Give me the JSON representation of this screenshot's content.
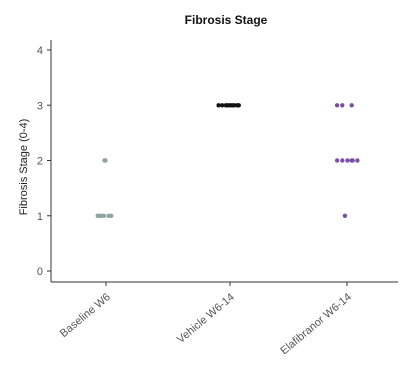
{
  "chart_data": {
    "type": "scatter",
    "title": "Fibrosis Stage",
    "xlabel": "",
    "ylabel": "Fibrosis Stage (0-4)",
    "ylim": [
      0,
      4
    ],
    "yticks": [
      "0",
      "1",
      "2",
      "3",
      "4"
    ],
    "grid": false,
    "categories": [
      "Baseline W6",
      "Vehicle W6-14",
      "Elafibranor W6-14"
    ],
    "series": [
      {
        "category": "Baseline W6",
        "color": "#8fa3a3",
        "points": [
          {
            "jitter": -0.16,
            "y": 1
          },
          {
            "jitter": -0.13,
            "y": 1
          },
          {
            "jitter": -0.09,
            "y": 1
          },
          {
            "jitter": -0.04,
            "y": 1
          },
          {
            "jitter": 0.05,
            "y": 1
          },
          {
            "jitter": 0.1,
            "y": 1
          },
          {
            "jitter": -0.03,
            "y": 2
          },
          {
            "jitter": -0.01,
            "y": 2
          }
        ]
      },
      {
        "category": "Vehicle W6-14",
        "color": "#111111",
        "points": [
          {
            "jitter": -0.22,
            "y": 3
          },
          {
            "jitter": -0.15,
            "y": 3
          },
          {
            "jitter": -0.08,
            "y": 3
          },
          {
            "jitter": -0.04,
            "y": 3
          },
          {
            "jitter": 0.0,
            "y": 3
          },
          {
            "jitter": 0.04,
            "y": 3
          },
          {
            "jitter": 0.08,
            "y": 3
          },
          {
            "jitter": 0.14,
            "y": 3
          },
          {
            "jitter": 0.17,
            "y": 3
          }
        ]
      },
      {
        "category": "Elafibranor W6-14",
        "color": "#7b4fa8",
        "points": [
          {
            "jitter": -0.19,
            "y": 3
          },
          {
            "jitter": -0.09,
            "y": 3
          },
          {
            "jitter": 0.09,
            "y": 3
          },
          {
            "jitter": -0.19,
            "y": 2
          },
          {
            "jitter": -0.09,
            "y": 2
          },
          {
            "jitter": 0.01,
            "y": 2
          },
          {
            "jitter": 0.09,
            "y": 2
          },
          {
            "jitter": 0.11,
            "y": 2
          },
          {
            "jitter": 0.2,
            "y": 2
          },
          {
            "jitter": -0.04,
            "y": 1
          }
        ]
      }
    ]
  }
}
